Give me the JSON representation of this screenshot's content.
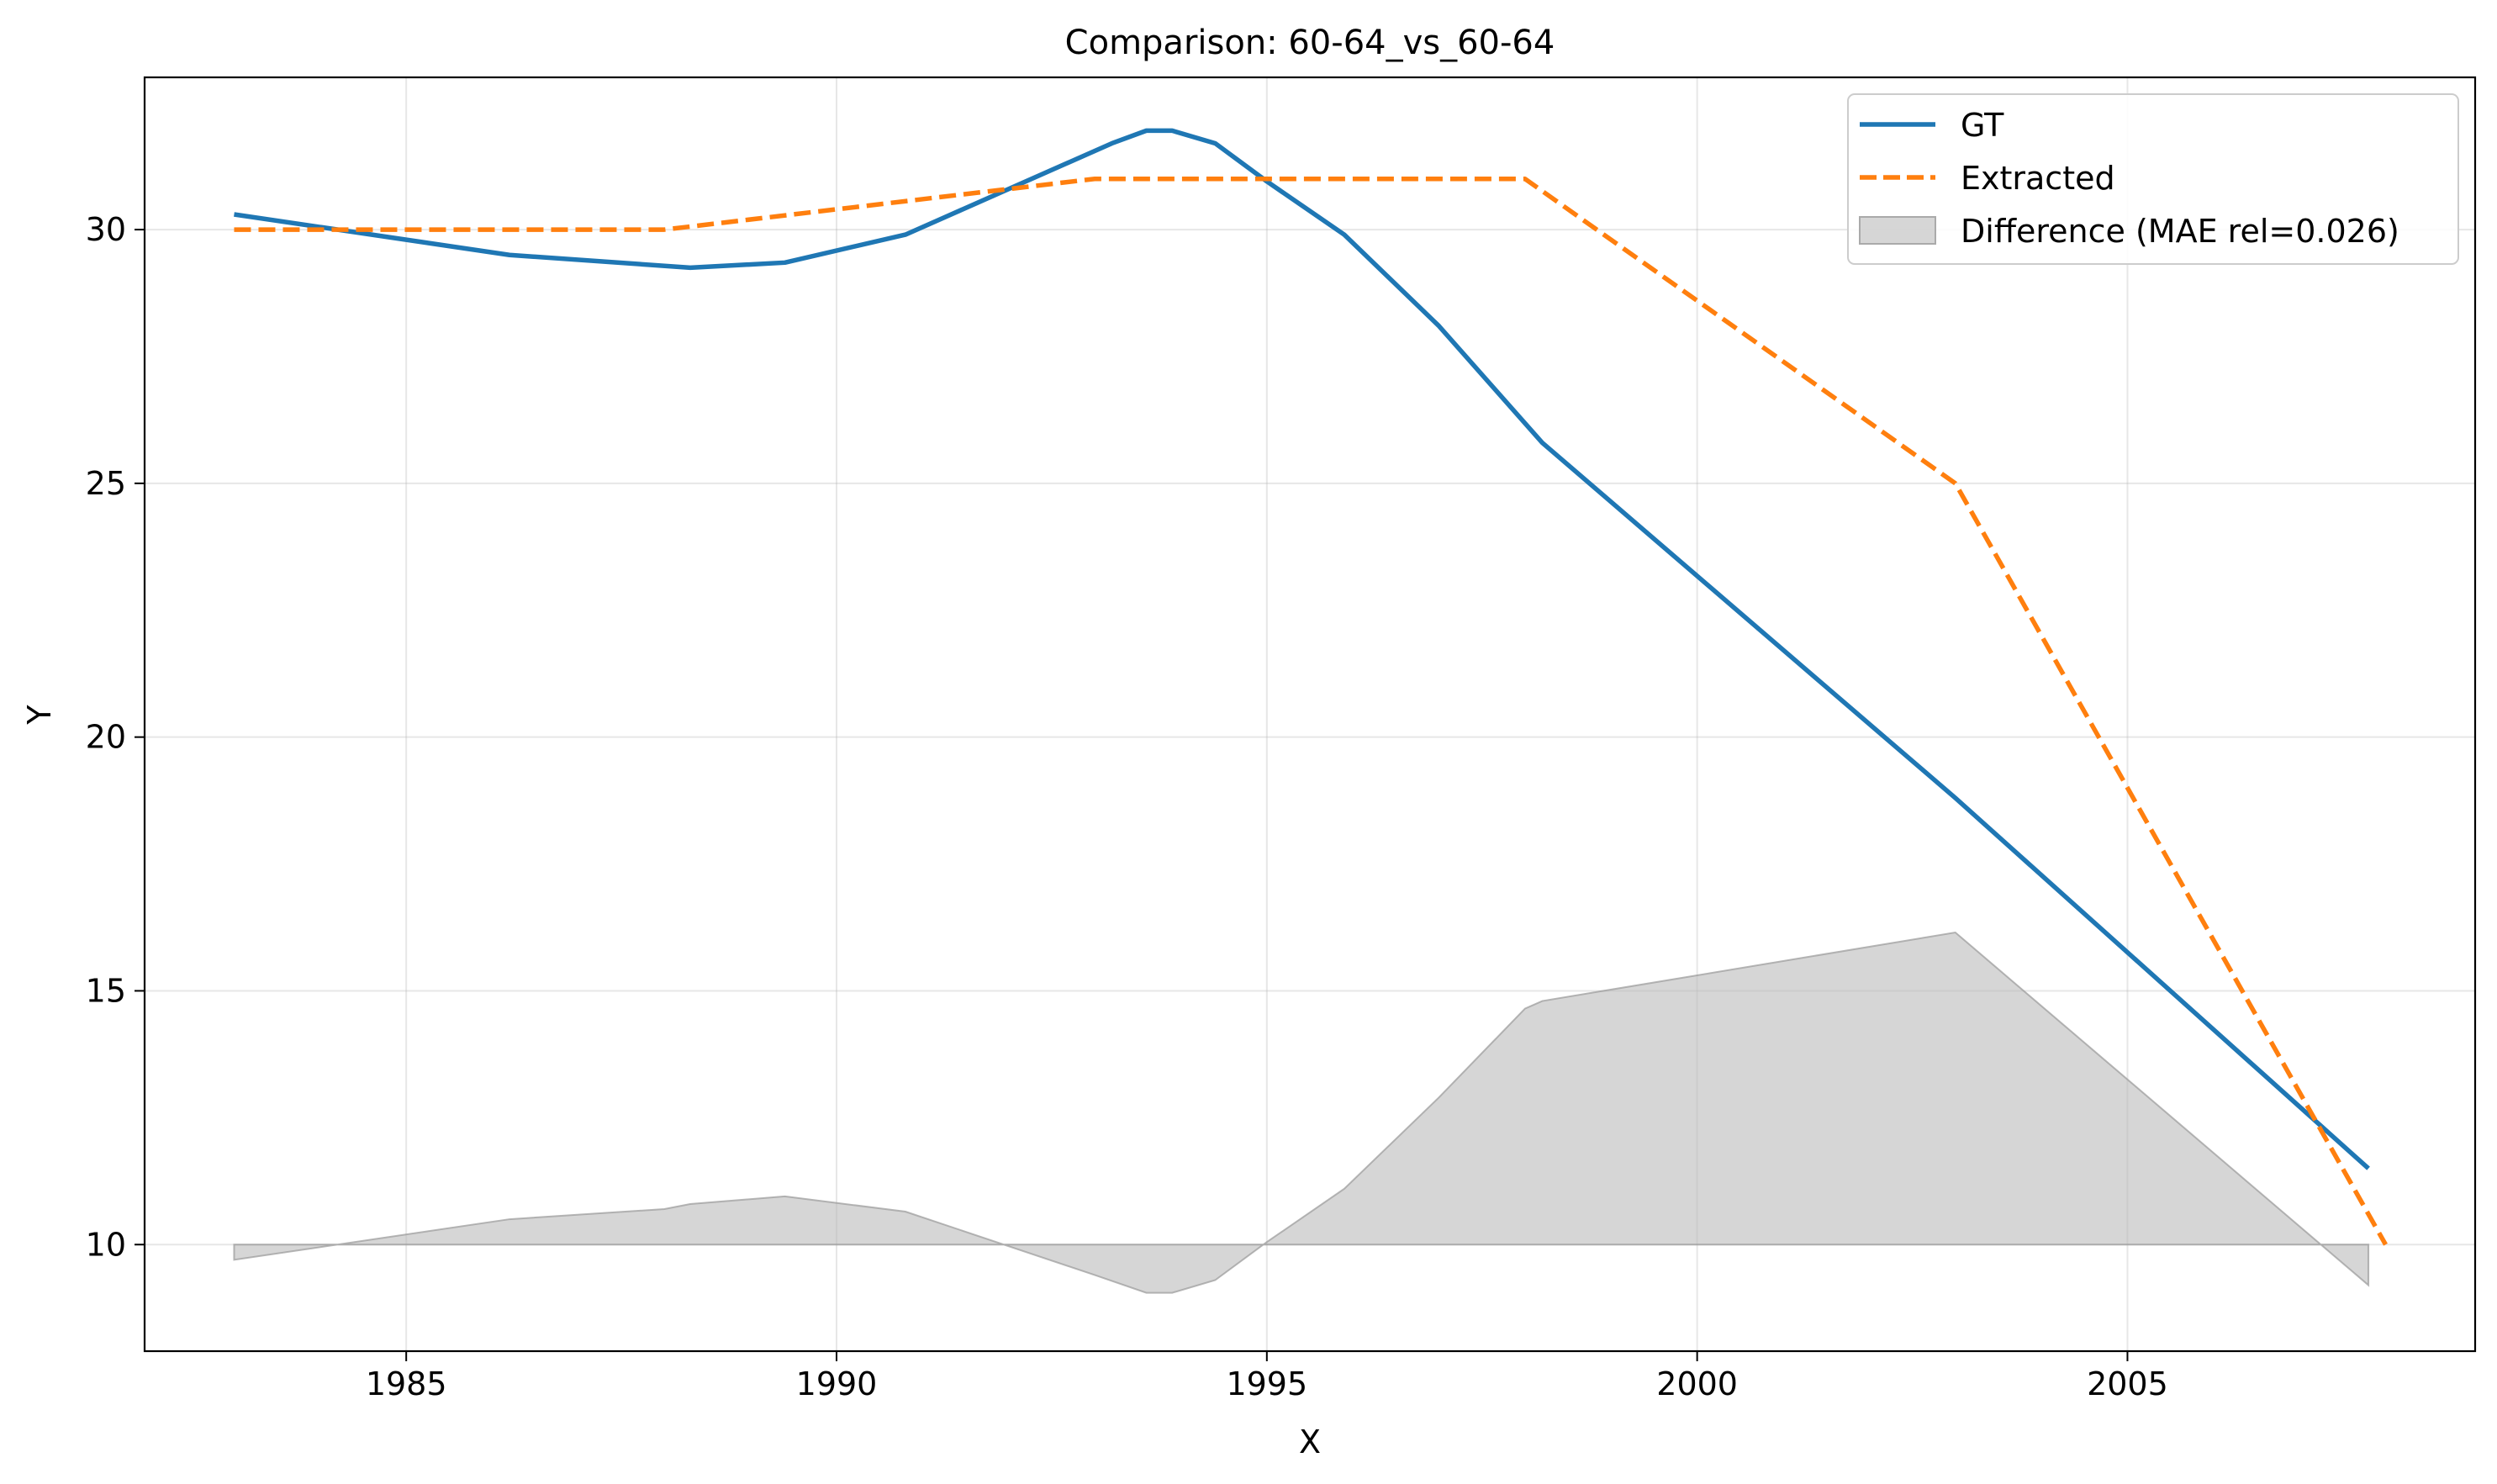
{
  "chart_data": {
    "type": "line",
    "title": "Comparison: 60-64_vs_60-64",
    "xlabel": "X",
    "ylabel": "Y",
    "xlim": [
      1981.96,
      2009.04
    ],
    "ylim": [
      7.9,
      33.0
    ],
    "xticks": [
      1985,
      1990,
      1995,
      2000,
      2005
    ],
    "yticks": [
      10,
      15,
      20,
      25,
      30
    ],
    "grid": true,
    "legend_position": "top-right",
    "series": [
      {
        "name": "GT",
        "style": "solid",
        "color": "#1f77b4",
        "x": [
          1983.0,
          1986.2,
          1988.3,
          1989.4,
          1990.8,
          1993.2,
          1993.6,
          1993.9,
          1994.4,
          1995.0,
          1995.9,
          1997.0,
          1998.2,
          2003.0,
          2007.8
        ],
        "y": [
          30.3,
          29.5,
          29.25,
          29.35,
          29.9,
          31.7,
          31.95,
          31.95,
          31.7,
          30.95,
          29.9,
          28.1,
          25.8,
          18.8,
          11.5
        ]
      },
      {
        "name": "Extracted",
        "style": "dashed",
        "color": "#ff7f0e",
        "x": [
          1983.0,
          1988.0,
          1993.0,
          1998.0,
          2003.0,
          2008.0
        ],
        "y": [
          30.0,
          30.0,
          31.0,
          31.0,
          25.0,
          10.0
        ]
      },
      {
        "name": "Difference (MAE rel=0.026)",
        "style": "fill",
        "color": "#bbbbbb",
        "baseline": 10,
        "x": [
          1983.0,
          1986.2,
          1988.0,
          1988.3,
          1989.4,
          1990.8,
          1993.0,
          1993.6,
          1993.9,
          1994.4,
          1995.0,
          1995.9,
          1997.0,
          1998.0,
          1998.2,
          2003.0,
          2007.8
        ],
        "y": [
          9.7,
          10.5,
          10.7,
          10.8,
          10.95,
          10.65,
          9.4,
          9.05,
          9.05,
          9.3,
          10.05,
          11.1,
          12.9,
          14.65,
          14.8,
          16.15,
          9.2
        ]
      }
    ]
  }
}
